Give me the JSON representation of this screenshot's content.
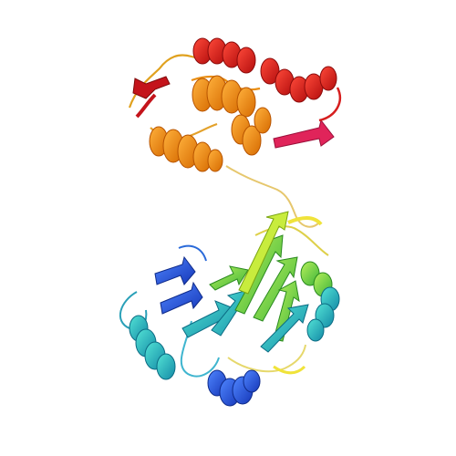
{
  "image": {
    "subject": "protein-ribbon-structure",
    "background_color": "#ffffff",
    "colors": {
      "blue": "#1e4fd6",
      "cyan": "#22a7cf",
      "teal": "#2fd1c0",
      "green": "#6ad94a",
      "yellow_green": "#b7ea2d",
      "yellow": "#f0e33a",
      "orange": "#f29b1a",
      "dark_orange": "#e8740f",
      "red": "#d61e1e",
      "crimson": "#e0245a",
      "coil": "#d8b35a"
    }
  }
}
